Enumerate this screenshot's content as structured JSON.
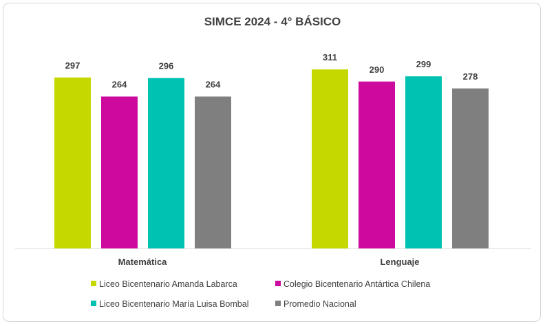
{
  "chart_data": {
    "type": "bar",
    "title": "SIMCE 2024 - 4° BÁSICO",
    "categories": [
      "Matemática",
      "Lenguaje"
    ],
    "series": [
      {
        "name": "Liceo Bicentenario Amanda Labarca",
        "values": [
          297,
          311
        ],
        "color": "#c5d800"
      },
      {
        "name": "Colegio Bicentenario Antártica Chilena",
        "values": [
          264,
          290
        ],
        "color": "#cc0a9e"
      },
      {
        "name": "Liceo Bicentenario María Luisa Bombal",
        "values": [
          296,
          299
        ],
        "color": "#00c2b2"
      },
      {
        "name": "Promedio Nacional",
        "values": [
          264,
          278
        ],
        "color": "#7f7f7f"
      }
    ],
    "ylim": [
      0,
      360
    ],
    "grid": false,
    "data_labels": true,
    "legend_position": "bottom"
  }
}
